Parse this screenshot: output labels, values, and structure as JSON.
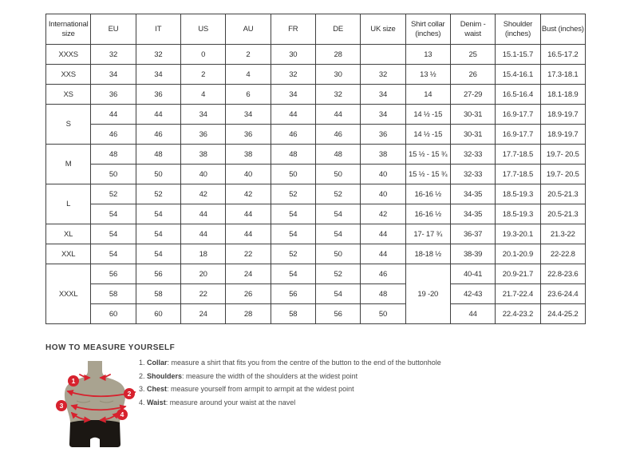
{
  "colors": {
    "accent_red": "#d7222e",
    "mannequin_body": "#a9a390",
    "mannequin_shorts": "#1b1713",
    "table_border": "#404040",
    "text_dark": "#2f2f2f"
  },
  "size_chart": {
    "headers": [
      "International size",
      "EU",
      "IT",
      "US",
      "AU",
      "FR",
      "DE",
      "UK size",
      "Shirt collar (inches)",
      "Denim - waist",
      "Shoulder (inches)",
      "Bust (inches)"
    ],
    "rows": [
      [
        {
          "t": "XXXS"
        },
        {
          "t": "32"
        },
        {
          "t": "32"
        },
        {
          "t": "0"
        },
        {
          "t": "2"
        },
        {
          "t": "30"
        },
        {
          "t": "28"
        },
        {
          "t": ""
        },
        {
          "t": "13"
        },
        {
          "t": "25"
        },
        {
          "t": "15.1-15.7"
        },
        {
          "t": "16.5-17.2"
        }
      ],
      [
        {
          "t": "XXS"
        },
        {
          "t": "34"
        },
        {
          "t": "34"
        },
        {
          "t": "2"
        },
        {
          "t": "4"
        },
        {
          "t": "32"
        },
        {
          "t": "30"
        },
        {
          "t": "32"
        },
        {
          "t": "13 ½"
        },
        {
          "t": "26"
        },
        {
          "t": "15.4-16.1"
        },
        {
          "t": "17.3-18.1"
        }
      ],
      [
        {
          "t": "XS"
        },
        {
          "t": "36"
        },
        {
          "t": "36"
        },
        {
          "t": "4"
        },
        {
          "t": "6"
        },
        {
          "t": "34"
        },
        {
          "t": "32"
        },
        {
          "t": "34"
        },
        {
          "t": "14"
        },
        {
          "t": "27-29"
        },
        {
          "t": "16.5-16.4"
        },
        {
          "t": "18.1-18.9"
        }
      ],
      [
        {
          "t": "S",
          "rs": 2
        },
        {
          "t": "44"
        },
        {
          "t": "44"
        },
        {
          "t": "34"
        },
        {
          "t": "34"
        },
        {
          "t": "44"
        },
        {
          "t": "44"
        },
        {
          "t": "34"
        },
        {
          "t": "14 ½ -15"
        },
        {
          "t": "30-31"
        },
        {
          "t": "16.9-17.7"
        },
        {
          "t": "18.9-19.7"
        }
      ],
      [
        null,
        {
          "t": "46"
        },
        {
          "t": "46"
        },
        {
          "t": "36"
        },
        {
          "t": "36"
        },
        {
          "t": "46"
        },
        {
          "t": "46"
        },
        {
          "t": "36"
        },
        {
          "t": "14 ½ -15"
        },
        {
          "t": "30-31"
        },
        {
          "t": "16.9-17.7"
        },
        {
          "t": "18.9-19.7"
        }
      ],
      [
        {
          "t": "M",
          "rs": 2
        },
        {
          "t": "48"
        },
        {
          "t": "48"
        },
        {
          "t": "38"
        },
        {
          "t": "38"
        },
        {
          "t": "48"
        },
        {
          "t": "48"
        },
        {
          "t": "38"
        },
        {
          "t": "15 ½ - 15 ¾"
        },
        {
          "t": "32-33"
        },
        {
          "t": "17.7-18.5"
        },
        {
          "t": "19.7- 20.5"
        }
      ],
      [
        null,
        {
          "t": "50"
        },
        {
          "t": "50"
        },
        {
          "t": "40"
        },
        {
          "t": "40"
        },
        {
          "t": "50"
        },
        {
          "t": "50"
        },
        {
          "t": "40"
        },
        {
          "t": "15 ½ - 15 ¾"
        },
        {
          "t": "32-33"
        },
        {
          "t": "17.7-18.5"
        },
        {
          "t": "19.7- 20.5"
        }
      ],
      [
        {
          "t": "L",
          "rs": 2
        },
        {
          "t": "52"
        },
        {
          "t": "52"
        },
        {
          "t": "42"
        },
        {
          "t": "42"
        },
        {
          "t": "52"
        },
        {
          "t": "52"
        },
        {
          "t": "40"
        },
        {
          "t": "16-16 ½"
        },
        {
          "t": "34-35"
        },
        {
          "t": "18.5-19.3"
        },
        {
          "t": "20.5-21.3"
        }
      ],
      [
        null,
        {
          "t": "54"
        },
        {
          "t": "54"
        },
        {
          "t": "44"
        },
        {
          "t": "44"
        },
        {
          "t": "54"
        },
        {
          "t": "54"
        },
        {
          "t": "42"
        },
        {
          "t": "16-16 ½"
        },
        {
          "t": "34-35"
        },
        {
          "t": "18.5-19.3"
        },
        {
          "t": "20.5-21.3"
        }
      ],
      [
        {
          "t": "XL"
        },
        {
          "t": "54"
        },
        {
          "t": "54"
        },
        {
          "t": "44"
        },
        {
          "t": "44"
        },
        {
          "t": "54"
        },
        {
          "t": "54"
        },
        {
          "t": "44"
        },
        {
          "t": "17- 17 ¾"
        },
        {
          "t": "36-37"
        },
        {
          "t": "19.3-20.1"
        },
        {
          "t": "21.3-22"
        }
      ],
      [
        {
          "t": "XXL"
        },
        {
          "t": "54"
        },
        {
          "t": "54"
        },
        {
          "t": "18"
        },
        {
          "t": "22"
        },
        {
          "t": "52"
        },
        {
          "t": "50"
        },
        {
          "t": "44"
        },
        {
          "t": "18-18 ½"
        },
        {
          "t": "38-39"
        },
        {
          "t": "20.1-20.9"
        },
        {
          "t": "22-22.8"
        }
      ],
      [
        {
          "t": "XXXL",
          "rs": 3
        },
        {
          "t": "56"
        },
        {
          "t": "56"
        },
        {
          "t": "20"
        },
        {
          "t": "24"
        },
        {
          "t": "54"
        },
        {
          "t": "52"
        },
        {
          "t": "46"
        },
        {
          "t": "19 -20",
          "rs": 3
        },
        {
          "t": "40-41"
        },
        {
          "t": "20.9-21.7"
        },
        {
          "t": "22.8-23.6"
        }
      ],
      [
        null,
        {
          "t": "58"
        },
        {
          "t": "58"
        },
        {
          "t": "22"
        },
        {
          "t": "26"
        },
        {
          "t": "56"
        },
        {
          "t": "54"
        },
        {
          "t": "48"
        },
        null,
        {
          "t": "42-43"
        },
        {
          "t": "21.7-22.4"
        },
        {
          "t": "23.6-24.4"
        }
      ],
      [
        null,
        {
          "t": "60"
        },
        {
          "t": "60"
        },
        {
          "t": "24"
        },
        {
          "t": "28"
        },
        {
          "t": "58"
        },
        {
          "t": "56"
        },
        {
          "t": "50"
        },
        null,
        {
          "t": "44"
        },
        {
          "t": "22.4-23.2"
        },
        {
          "t": "24.4-25.2"
        }
      ]
    ]
  },
  "measure": {
    "title": "HOW TO MEASURE YOURSELF",
    "badges": [
      "1",
      "2",
      "3",
      "4"
    ],
    "steps": [
      {
        "num": "1.",
        "term": "Collar",
        "text": ": measure a shirt that fits you from the centre of the button to the end of the buttonhole"
      },
      {
        "num": "2.",
        "term": "Shoulders",
        "text": ": measure the width of the shoulders at the widest point"
      },
      {
        "num": "3.",
        "term": "Chest",
        "text": ": measure yourself from armpit to armpit at the widest point"
      },
      {
        "num": "4.",
        "term": "Waist",
        "text": ": measure around your waist at the navel"
      }
    ]
  }
}
